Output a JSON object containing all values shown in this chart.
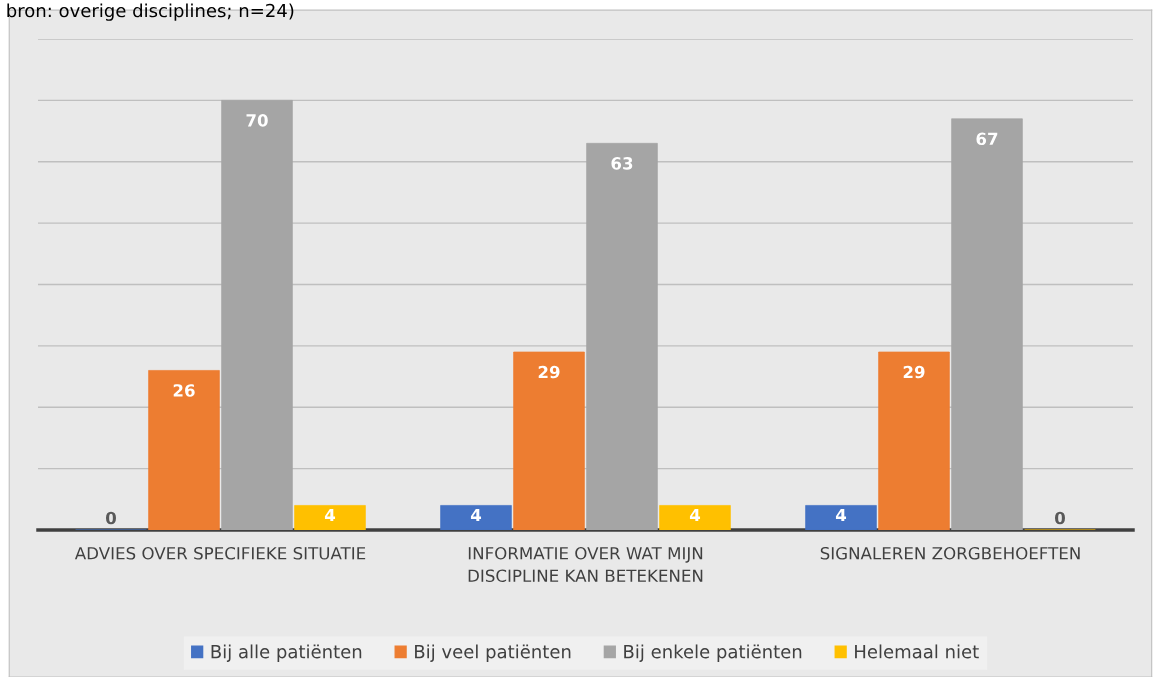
{
  "chart_data": {
    "type": "bar",
    "annotations": [
      "bron: overige disciplines; n=24)"
    ],
    "categories": [
      "ADVIES OVER SPECIFIEKE SITUATIE",
      "INFORMATIE OVER WAT MIJN\nDISCIPLINE KAN BETEKENEN",
      "SIGNALEREN ZORGBEHOEFTEN"
    ],
    "series": [
      {
        "name": "Bij alle patiënten",
        "color": "#4472c4",
        "values": [
          0,
          4,
          4
        ]
      },
      {
        "name": "Bij veel patiënten",
        "color": "#ed7d31",
        "values": [
          26,
          29,
          29
        ]
      },
      {
        "name": "Bij enkele patiënten",
        "color": "#a5a5a5",
        "values": [
          70,
          63,
          67
        ]
      },
      {
        "name": "Helemaal niet",
        "color": "#ffc000",
        "values": [
          4,
          4,
          0
        ]
      }
    ],
    "ylim": [
      0,
      80
    ],
    "yticks": [
      0,
      {
        "value": 10,
        "label": null
      },
      {
        "value": 20,
        "label": null
      },
      {
        "value": 30,
        "label": null
      },
      {
        "value": 40,
        "label": null
      },
      {
        "value": 50,
        "label": null
      },
      {
        "value": 60,
        "label": null
      },
      {
        "value": 70,
        "label": null
      },
      {
        "value": 80,
        "label": null
      }
    ],
    "grid": "y",
    "data_labels": true,
    "legend": "bottom",
    "tick_labels": "x"
  }
}
